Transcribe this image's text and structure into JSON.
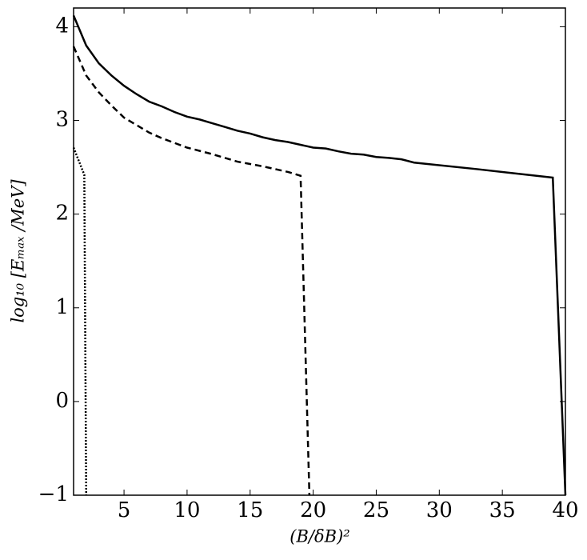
{
  "chart_data": {
    "type": "line",
    "x_label": "(B/δB)²",
    "y_label": "log₁₀ [Eₘₐₓ /MeV]",
    "xlim": [
      1,
      40
    ],
    "ylim": [
      -1,
      4.2
    ],
    "xticks": [
      5,
      10,
      15,
      20,
      25,
      30,
      35,
      40
    ],
    "yticks": [
      {
        "value": -1,
        "label": "−1"
      },
      0,
      1,
      2,
      3,
      4
    ],
    "series": [
      {
        "color": "#000000",
        "dash": "solid",
        "x": [
          1,
          2,
          3,
          4,
          5,
          6,
          7,
          8,
          9,
          10,
          11,
          12,
          13,
          14,
          15,
          16,
          17,
          18,
          19,
          20,
          21,
          22,
          23,
          24,
          25,
          26,
          27,
          28,
          33,
          39,
          40
        ],
        "values": [
          4.12,
          3.8,
          3.61,
          3.48,
          3.37,
          3.28,
          3.2,
          3.15,
          3.09,
          3.04,
          3.01,
          2.97,
          2.93,
          2.89,
          2.86,
          2.82,
          2.79,
          2.77,
          2.74,
          2.71,
          2.7,
          2.67,
          2.645,
          2.635,
          2.61,
          2.6,
          2.585,
          2.55,
          2.48,
          2.39,
          -1
        ]
      },
      {
        "color": "#000000",
        "dash": "dashed",
        "x": [
          1,
          2,
          3,
          4,
          5,
          6,
          7,
          8,
          9,
          10,
          12,
          14,
          16,
          18,
          19,
          19.7
        ],
        "values": [
          3.79,
          3.48,
          3.3,
          3.16,
          3.03,
          2.95,
          2.87,
          2.81,
          2.76,
          2.71,
          2.64,
          2.56,
          2.51,
          2.45,
          2.41,
          -1
        ]
      },
      {
        "color": "#000000",
        "dash": "dotted",
        "x": [
          1,
          1.85,
          2
        ],
        "values": [
          2.71,
          2.42,
          -1
        ]
      }
    ]
  }
}
